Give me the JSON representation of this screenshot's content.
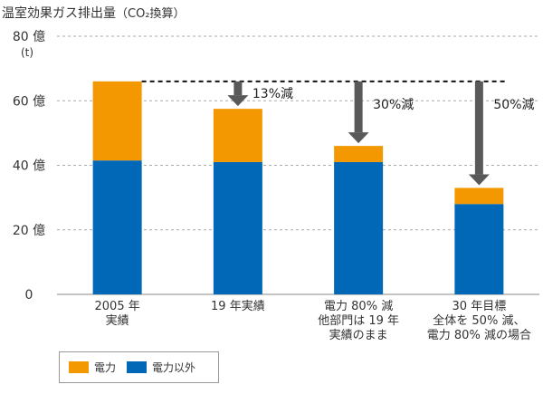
{
  "chart_data": {
    "type": "bar",
    "stacked": true,
    "title": "温室効果ガス排出量",
    "title_suffix": "（CO₂換算）",
    "ylabel_unit": "(t)",
    "y_tick_suffix": "億",
    "ylim": [
      0,
      80
    ],
    "y_ticks": [
      0,
      20,
      40,
      60,
      80
    ],
    "y_tick_labels": [
      "0",
      "20 億",
      "40 億",
      "60 億",
      "80 億"
    ],
    "categories": [
      [
        "2005 年",
        "実績"
      ],
      [
        "19 年実績"
      ],
      [
        "電力 80% 減",
        "他部門は 19 年",
        "実績のまま"
      ],
      [
        "30 年目標",
        "全体を 50% 減、",
        "電力 80% 減の場合"
      ]
    ],
    "series": [
      {
        "name": "電力以外",
        "values": [
          41.5,
          41.0,
          41.0,
          28.0
        ],
        "color": "#0068b7"
      },
      {
        "name": "電力",
        "values": [
          24.5,
          16.5,
          5.0,
          5.0
        ],
        "color": "#f39800"
      }
    ],
    "reference_line": {
      "value": 66,
      "style": "dashed"
    },
    "annotations": [
      {
        "bar_index": 1,
        "label": "13%減"
      },
      {
        "bar_index": 2,
        "label": "30%減"
      },
      {
        "bar_index": 3,
        "label": "50%減"
      }
    ],
    "legend": [
      {
        "label": "電力",
        "color": "#f39800"
      },
      {
        "label": "電力以外",
        "color": "#0068b7"
      }
    ],
    "legend_position": "bottom-left",
    "grid": true
  }
}
